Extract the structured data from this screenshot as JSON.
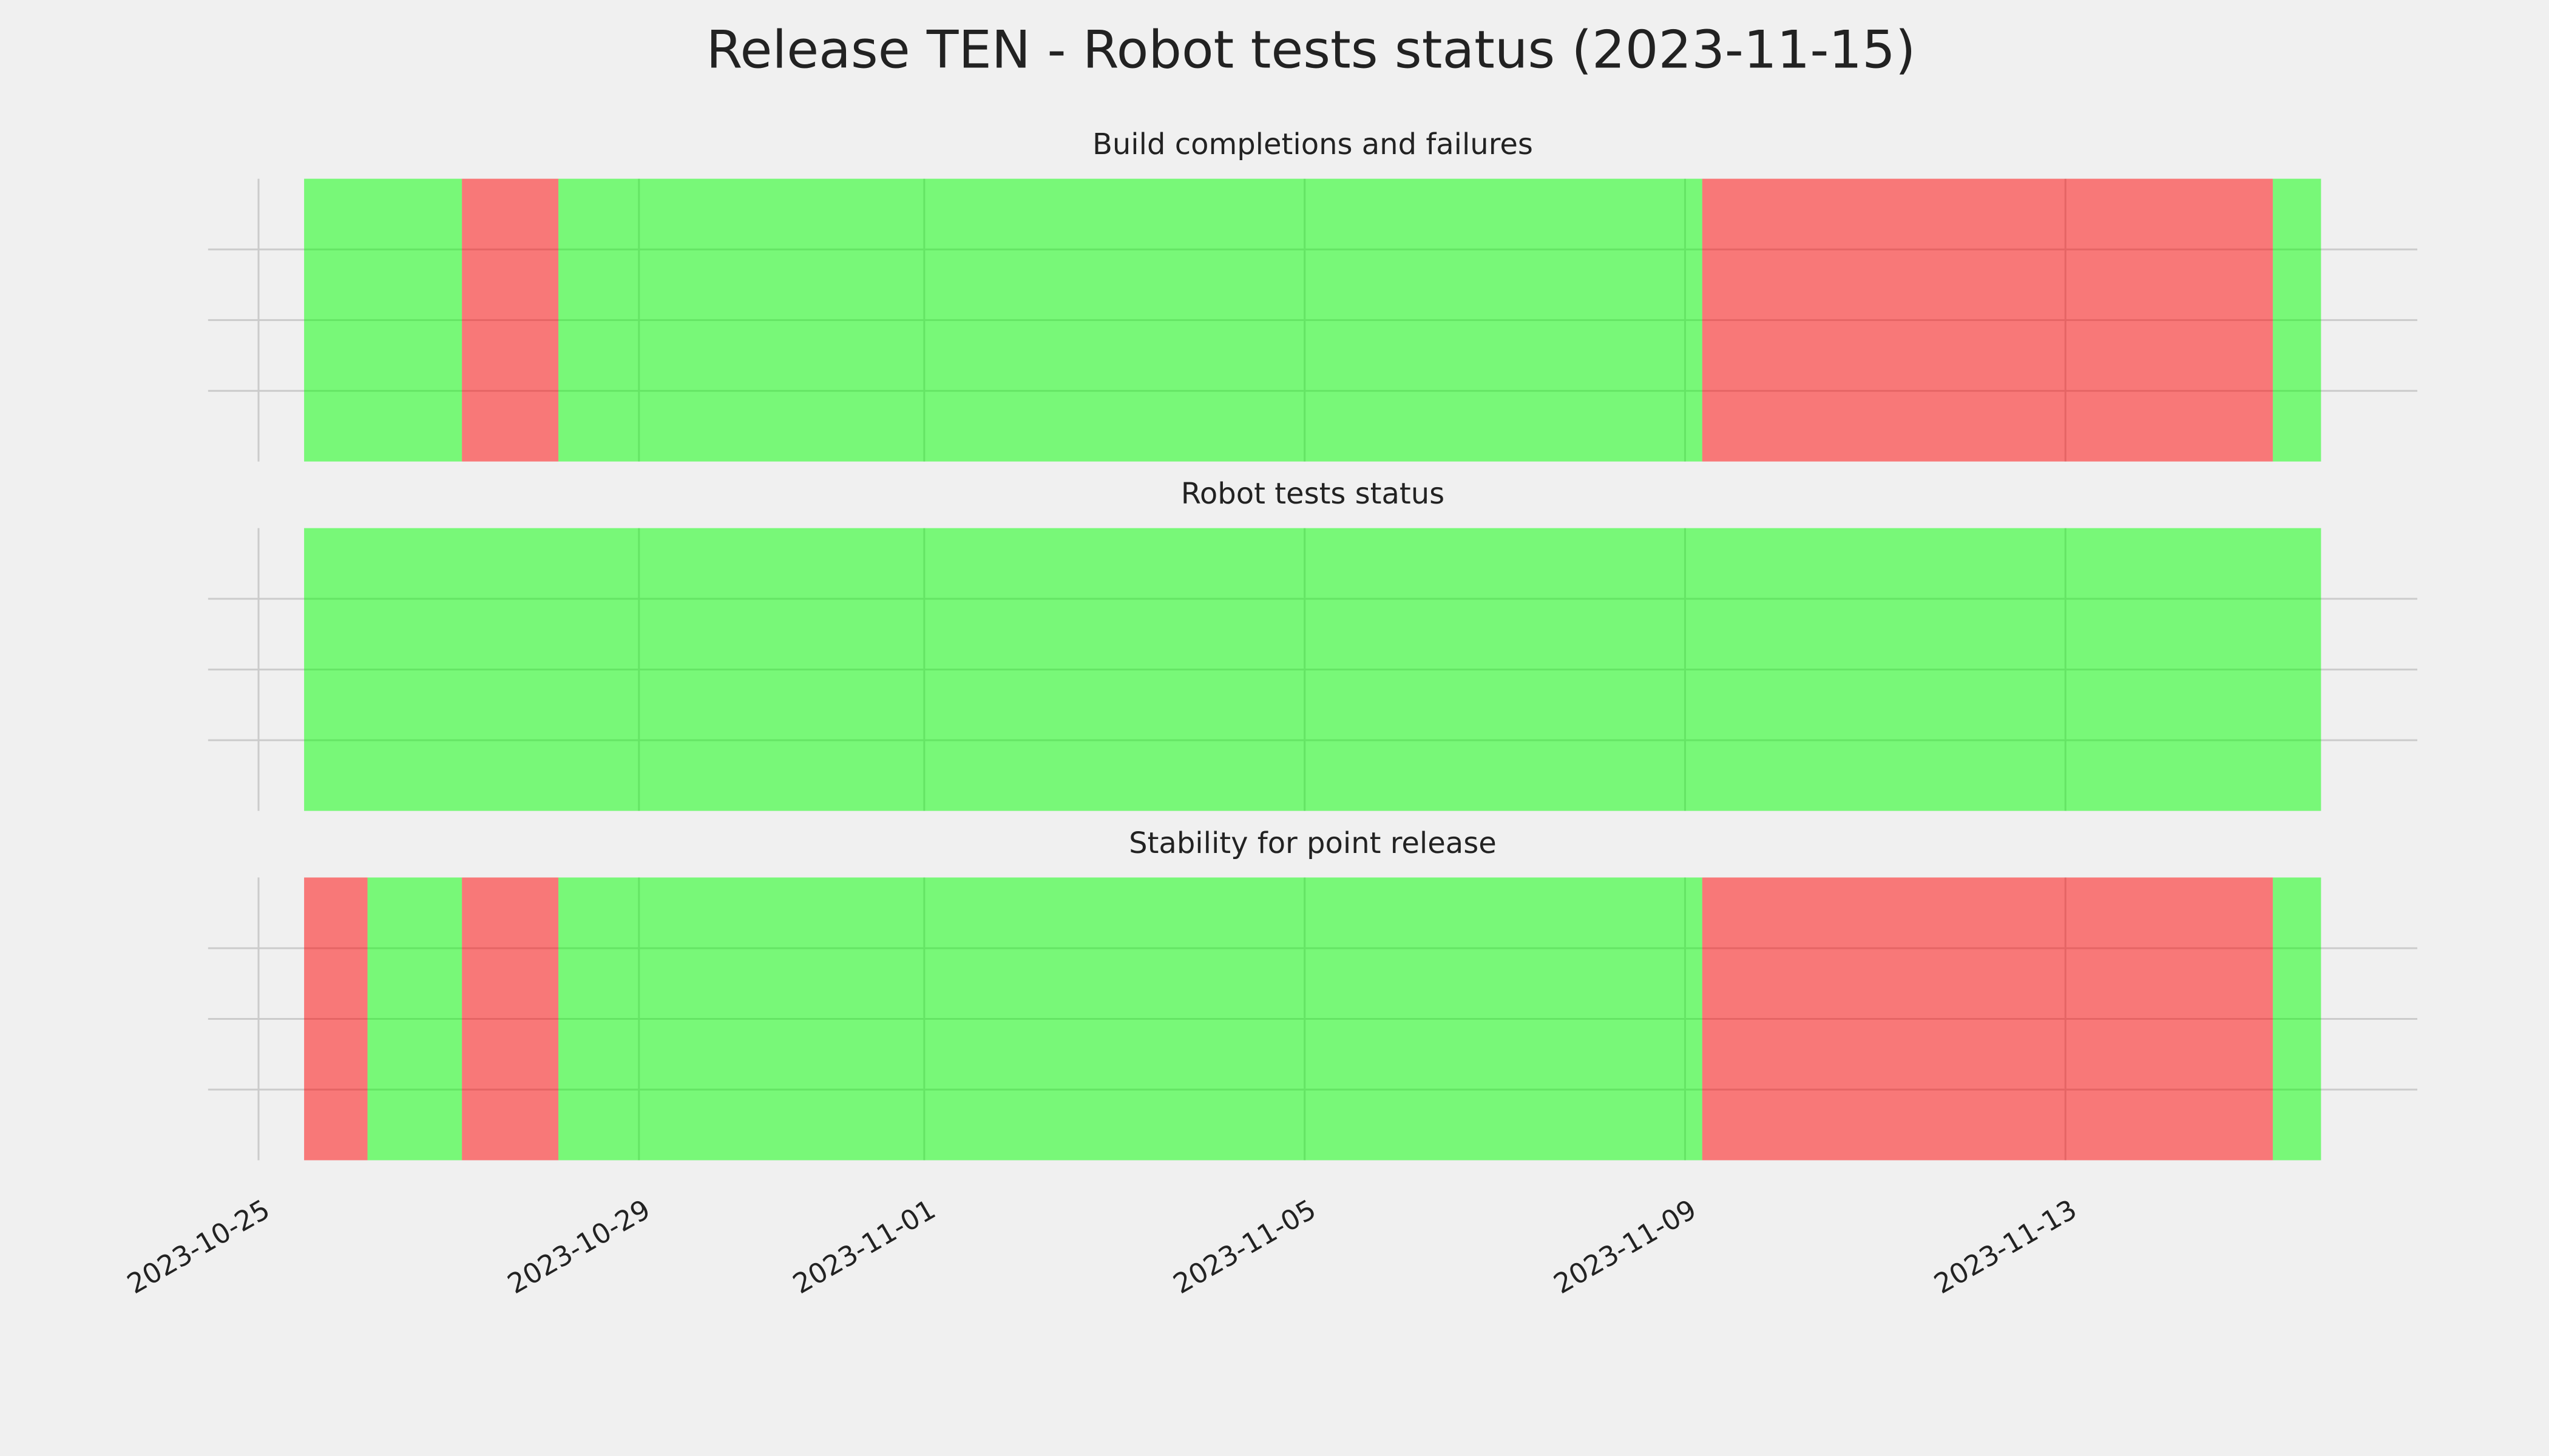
{
  "title": "Release TEN - Robot tests status (2023-11-15)",
  "chart_data": [
    {
      "type": "span",
      "title": "Build completions and failures",
      "alpha": 0.5,
      "grid": true,
      "xlim": [
        "2023-10-24 11:16",
        "2023-11-16 16:48"
      ],
      "xticks": [
        "2023-10-25",
        "2023-10-29",
        "2023-11-01",
        "2023-11-05",
        "2023-11-09",
        "2023-11-13"
      ],
      "ylim": [
        0,
        1
      ],
      "yticks": [
        0.25,
        0.5,
        0.75
      ],
      "segments": [
        {
          "start": "2023-10-25 11:30",
          "end": "2023-10-27 03:20",
          "color": "#00ff00"
        },
        {
          "start": "2023-10-27 03:20",
          "end": "2023-10-28 03:40",
          "color": "#ff0000"
        },
        {
          "start": "2023-10-28 03:40",
          "end": "2023-11-09 04:20",
          "color": "#00ff00"
        },
        {
          "start": "2023-11-09 04:20",
          "end": "2023-11-15 04:20",
          "color": "#ff0000"
        },
        {
          "start": "2023-11-15 04:20",
          "end": "2023-11-15 16:30",
          "color": "#00ff00"
        }
      ]
    },
    {
      "type": "span",
      "title": "Robot tests status",
      "alpha": 0.5,
      "grid": true,
      "xlim": [
        "2023-10-24 11:16",
        "2023-11-16 16:48"
      ],
      "xticks": [
        "2023-10-25",
        "2023-10-29",
        "2023-11-01",
        "2023-11-05",
        "2023-11-09",
        "2023-11-13"
      ],
      "ylim": [
        0,
        1
      ],
      "yticks": [
        0.25,
        0.5,
        0.75
      ],
      "segments": [
        {
          "start": "2023-10-25 11:30",
          "end": "2023-11-15 16:30",
          "color": "#00ff00"
        }
      ]
    },
    {
      "type": "span",
      "title": "Stability for point release",
      "alpha": 0.5,
      "grid": true,
      "show_xtick_labels": true,
      "xlim": [
        "2023-10-24 11:16",
        "2023-11-16 16:48"
      ],
      "xticks": [
        "2023-10-25",
        "2023-10-29",
        "2023-11-01",
        "2023-11-05",
        "2023-11-09",
        "2023-11-13"
      ],
      "ylim": [
        0,
        1
      ],
      "yticks": [
        0.25,
        0.5,
        0.75
      ],
      "segments": [
        {
          "start": "2023-10-25 11:30",
          "end": "2023-10-26 03:30",
          "color": "#ff0000"
        },
        {
          "start": "2023-10-26 03:30",
          "end": "2023-10-27 03:20",
          "color": "#00ff00"
        },
        {
          "start": "2023-10-27 03:20",
          "end": "2023-10-28 03:40",
          "color": "#ff0000"
        },
        {
          "start": "2023-10-28 03:40",
          "end": "2023-11-09 04:20",
          "color": "#00ff00"
        },
        {
          "start": "2023-11-09 04:20",
          "end": "2023-11-15 04:20",
          "color": "#ff0000"
        },
        {
          "start": "2023-11-15 04:20",
          "end": "2023-11-15 16:30",
          "color": "#00ff00"
        }
      ]
    }
  ]
}
